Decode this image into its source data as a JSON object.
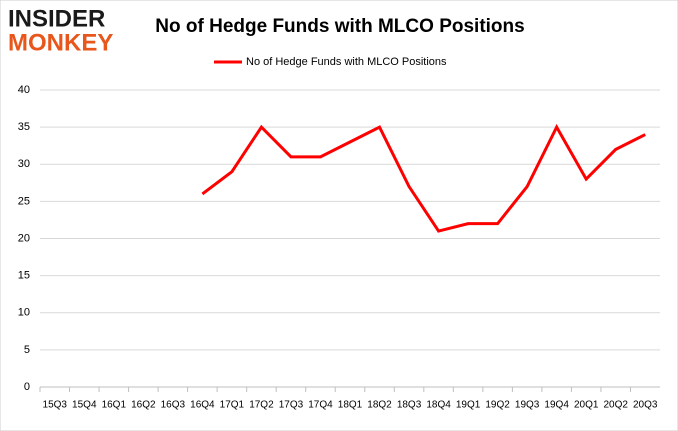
{
  "logo": {
    "line1": "INSIDER",
    "line2": "MONKEY"
  },
  "chart_data": {
    "type": "line",
    "title": "No of Hedge Funds with MLCO Positions",
    "categories": [
      "15Q3",
      "15Q4",
      "16Q1",
      "16Q2",
      "16Q3",
      "16Q4",
      "17Q1",
      "17Q2",
      "17Q3",
      "17Q4",
      "18Q1",
      "18Q2",
      "18Q3",
      "18Q4",
      "19Q1",
      "19Q2",
      "19Q3",
      "19Q4",
      "20Q1",
      "20Q2",
      "20Q3"
    ],
    "series": [
      {
        "name": "No of Hedge Funds with MLCO Positions",
        "color": "#ff0000",
        "values": [
          null,
          null,
          null,
          null,
          null,
          26,
          29,
          35,
          31,
          31,
          33,
          35,
          27,
          21,
          22,
          22,
          27,
          35,
          28,
          32,
          34
        ]
      }
    ],
    "ylim": [
      0,
      40
    ],
    "yticks": [
      0,
      5,
      10,
      15,
      20,
      25,
      30,
      35,
      40
    ],
    "grid": true,
    "legend": "top"
  }
}
